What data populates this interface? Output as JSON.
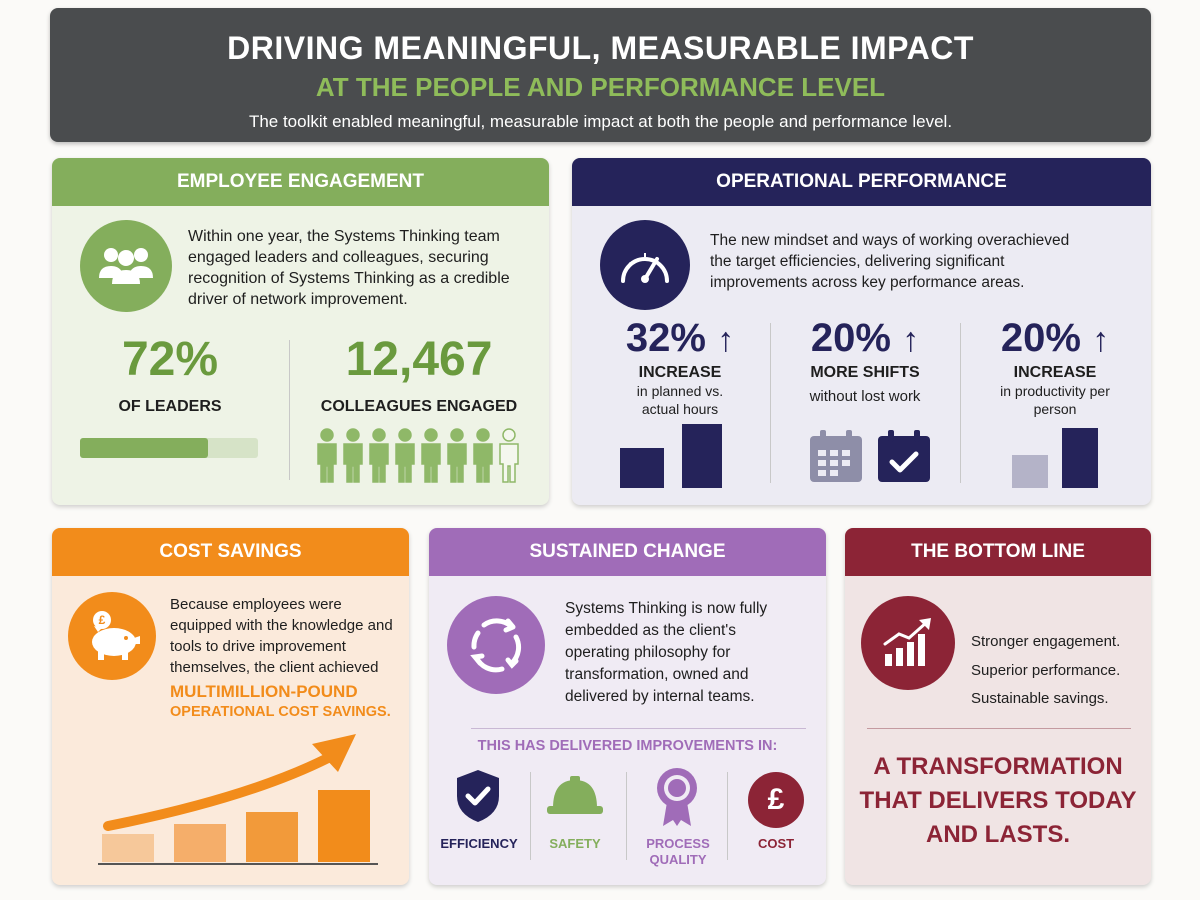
{
  "header": {
    "title": "DRIVING MEANINGFUL, MEASURABLE IMPACT",
    "subtitle": "AT THE PEOPLE AND PERFORMANCE LEVEL",
    "description": "The toolkit enabled meaningful, measurable impact at both the people and performance level."
  },
  "engagement": {
    "title": "EMPLOYEE ENGAGEMENT",
    "text": "Within one year, the Systems Thinking team engaged leaders and colleagues, securing recognition of Systems Thinking as a credible driver of network improvement.",
    "leaders_value": "72%",
    "leaders_label": "OF LEADERS",
    "leaders_progress": 0.72,
    "colleagues_value": "12,467",
    "colleagues_label": "COLLEAGUES ENGAGED",
    "people_icons_filled": 7,
    "people_icons_total": 8
  },
  "operational": {
    "title": "OPERATIONAL PERFORMANCE",
    "text": "The new mindset and ways of working overachieved the target efficiencies, delivering significant improvements across key performance areas.",
    "metrics": [
      {
        "value": "32%",
        "label": "INCREASE",
        "detail": "in planned vs. actual hours"
      },
      {
        "value": "20%",
        "label": "MORE SHIFTS",
        "detail": "without lost work"
      },
      {
        "value": "20%",
        "label": "INCREASE",
        "detail": "in productivity per person"
      }
    ]
  },
  "cost": {
    "title": "COST SAVINGS",
    "text": "Because employees were equipped with the knowledge and tools to drive improvement themselves, the client achieved",
    "highlight_1": "MULTIMILLION-POUND",
    "highlight_2": "OPERATIONAL COST SAVINGS."
  },
  "sustained": {
    "title": "SUSTAINED CHANGE",
    "text": "Systems Thinking is now fully embedded as the client's operating philosophy for transformation, owned and delivered by internal teams.",
    "improvements_heading": "THIS HAS DELIVERED IMPROVEMENTS IN:",
    "items": [
      "EFFICIENCY",
      "SAFETY",
      "PROCESS QUALITY",
      "COST"
    ]
  },
  "bottom": {
    "title": "THE BOTTOM LINE",
    "lines": [
      "Stronger engagement.",
      "Superior performance.",
      "Sustainable savings."
    ],
    "tagline_1": "A TRANSFORMATION",
    "tagline_2": "THAT DELIVERS TODAY",
    "tagline_3": "AND LASTS."
  },
  "colors": {
    "green": "#84ae5c",
    "navy": "#25235a",
    "orange": "#f28c1b",
    "purple": "#a06cb8",
    "maroon": "#8c2436",
    "dark": "#4a4c4e"
  },
  "icons": [
    "people-group-icon",
    "speedometer-icon",
    "arrow-up-icon",
    "calendar-icon",
    "calendar-check-icon",
    "piggy-bank-icon",
    "refresh-cycle-icon",
    "shield-check-icon",
    "hard-hat-icon",
    "award-ribbon-icon",
    "pound-icon",
    "growth-chart-icon"
  ]
}
